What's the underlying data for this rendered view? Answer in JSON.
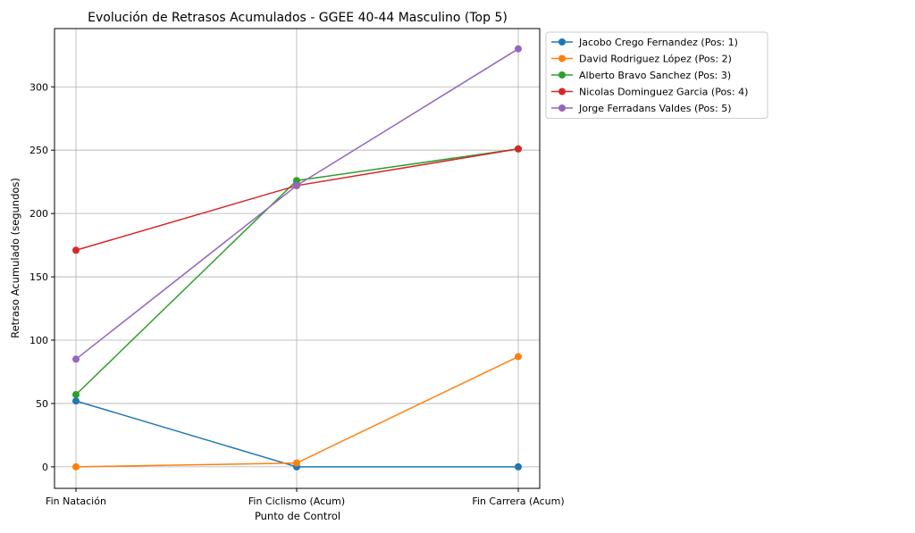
{
  "chart_data": {
    "type": "line",
    "title": "Evolución de Retrasos Acumulados - GGEE 40-44 Masculino (Top 5)",
    "xlabel": "Punto de Control",
    "ylabel": "Retraso Acumulado (segundos)",
    "categories": [
      "Fin Natación",
      "Fin Ciclismo (Acum)",
      "Fin Carrera (Acum)"
    ],
    "ylim": [
      -17,
      346
    ],
    "yticks": [
      0,
      50,
      100,
      150,
      200,
      250,
      300
    ],
    "grid": true,
    "legend_position": "outside-top-right",
    "series": [
      {
        "name": "Jacobo Crego Fernandez (Pos: 1)",
        "color": "#1f77b4",
        "values": [
          52,
          0,
          0
        ]
      },
      {
        "name": "David Rodriguez López (Pos: 2)",
        "color": "#ff7f0e",
        "values": [
          0,
          3,
          87
        ]
      },
      {
        "name": "Alberto Bravo Sanchez (Pos: 3)",
        "color": "#2ca02c",
        "values": [
          57,
          226,
          251
        ]
      },
      {
        "name": "Nicolas Dominguez Garcia (Pos: 4)",
        "color": "#d62728",
        "values": [
          171,
          222,
          251
        ]
      },
      {
        "name": "Jorge Ferradans Valdes (Pos: 5)",
        "color": "#9467bd",
        "values": [
          85,
          222,
          330
        ]
      }
    ]
  }
}
